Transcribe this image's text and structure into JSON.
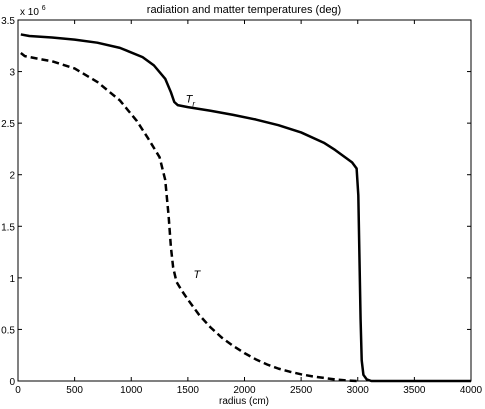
{
  "chart_data": {
    "type": "line",
    "title": "radiation and matter temperatures (deg)",
    "xlabel": "radius (cm)",
    "ylabel": "",
    "xlim": [
      0,
      4000
    ],
    "ylim": [
      0,
      3500000
    ],
    "y_multiplier_label": {
      "base": "x 10",
      "exponent": "6"
    },
    "x_ticks": [
      {
        "value": 0,
        "label": "0"
      },
      {
        "value": 500,
        "label": "500"
      },
      {
        "value": 1000,
        "label": "1000"
      },
      {
        "value": 1500,
        "label": "1500"
      },
      {
        "value": 2000,
        "label": "2000"
      },
      {
        "value": 2500,
        "label": "2500"
      },
      {
        "value": 3000,
        "label": "3000"
      },
      {
        "value": 3500,
        "label": "3500"
      },
      {
        "value": 4000,
        "label": "4000"
      }
    ],
    "y_ticks": [
      {
        "value": 0,
        "label": "0"
      },
      {
        "value": 500000,
        "label": "0.5"
      },
      {
        "value": 1000000,
        "label": "1"
      },
      {
        "value": 1500000,
        "label": "1.5"
      },
      {
        "value": 2000000,
        "label": "2"
      },
      {
        "value": 2500000,
        "label": "2.5"
      },
      {
        "value": 3000000,
        "label": "3"
      },
      {
        "value": 3500000,
        "label": "3.5"
      }
    ],
    "grid": false,
    "series": [
      {
        "name": "",
        "style": "solid",
        "color": "#000000",
        "points": [
          [
            25,
            3360000
          ],
          [
            100,
            3345000
          ],
          [
            300,
            3330000
          ],
          [
            500,
            3310000
          ],
          [
            700,
            3280000
          ],
          [
            900,
            3230000
          ],
          [
            1100,
            3140000
          ],
          [
            1200,
            3060000
          ],
          [
            1300,
            2930000
          ],
          [
            1350,
            2800000
          ],
          [
            1380,
            2705000
          ],
          [
            1410,
            2675000
          ],
          [
            1500,
            2655000
          ],
          [
            1700,
            2620000
          ],
          [
            1900,
            2580000
          ],
          [
            2100,
            2535000
          ],
          [
            2300,
            2480000
          ],
          [
            2500,
            2410000
          ],
          [
            2700,
            2310000
          ],
          [
            2800,
            2240000
          ],
          [
            2900,
            2160000
          ],
          [
            2950,
            2120000
          ],
          [
            2990,
            2060000
          ],
          [
            3005,
            1800000
          ],
          [
            3015,
            1200000
          ],
          [
            3025,
            600000
          ],
          [
            3035,
            200000
          ],
          [
            3050,
            60000
          ],
          [
            3080,
            15000
          ],
          [
            3120,
            0
          ],
          [
            4000,
            0
          ]
        ],
        "annotation": {
          "text": "T",
          "subscript": "r",
          "x": 1480,
          "y": 2700000
        }
      },
      {
        "name": "",
        "style": "dashed",
        "color": "#000000",
        "points": [
          [
            25,
            3180000
          ],
          [
            60,
            3150000
          ],
          [
            150,
            3130000
          ],
          [
            300,
            3100000
          ],
          [
            500,
            3030000
          ],
          [
            700,
            2900000
          ],
          [
            900,
            2720000
          ],
          [
            1050,
            2520000
          ],
          [
            1150,
            2350000
          ],
          [
            1250,
            2170000
          ],
          [
            1300,
            1950000
          ],
          [
            1330,
            1600000
          ],
          [
            1350,
            1300000
          ],
          [
            1370,
            1100000
          ],
          [
            1400,
            960000
          ],
          [
            1450,
            870000
          ],
          [
            1500,
            790000
          ],
          [
            1600,
            640000
          ],
          [
            1700,
            520000
          ],
          [
            1800,
            420000
          ],
          [
            1900,
            340000
          ],
          [
            2000,
            270000
          ],
          [
            2100,
            210000
          ],
          [
            2200,
            160000
          ],
          [
            2300,
            120000
          ],
          [
            2400,
            90000
          ],
          [
            2500,
            65000
          ],
          [
            2600,
            45000
          ],
          [
            2700,
            30000
          ],
          [
            2800,
            15000
          ],
          [
            2900,
            5000
          ],
          [
            2990,
            0
          ]
        ],
        "annotation": {
          "text": "T",
          "subscript": "",
          "x": 1550,
          "y": 1000000
        }
      }
    ],
    "colors": {
      "axis": "#000000",
      "line": "#000000",
      "background": "#ffffff"
    }
  }
}
